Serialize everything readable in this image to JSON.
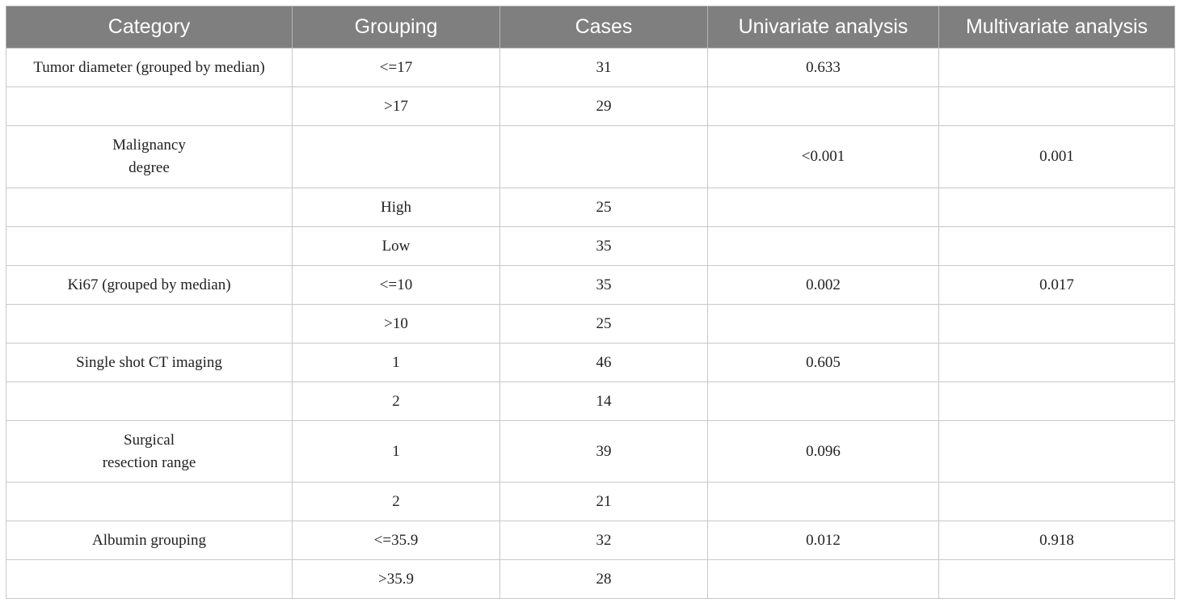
{
  "table": {
    "headers": [
      "Category",
      "Grouping",
      "Cases",
      "Univariate analysis",
      "Multivariate analysis"
    ],
    "rows": [
      {
        "category": "Tumor diameter (grouped by median)",
        "grouping": "<=17",
        "cases": "31",
        "univariate": "0.633",
        "multivariate": ""
      },
      {
        "category": "",
        "grouping": ">17",
        "cases": "29",
        "univariate": "",
        "multivariate": ""
      },
      {
        "category_line1": "Malignancy",
        "category_line2": "degree",
        "grouping": "",
        "cases": "",
        "univariate": "<0.001",
        "multivariate": "0.001"
      },
      {
        "category": "",
        "grouping": "High",
        "cases": "25",
        "univariate": "",
        "multivariate": ""
      },
      {
        "category": "",
        "grouping": "Low",
        "cases": "35",
        "univariate": "",
        "multivariate": ""
      },
      {
        "category": "Ki67 (grouped by median)",
        "grouping": "<=10",
        "cases": "35",
        "univariate": "0.002",
        "multivariate": "0.017"
      },
      {
        "category": "",
        "grouping": ">10",
        "cases": "25",
        "univariate": "",
        "multivariate": ""
      },
      {
        "category": "Single shot CT imaging",
        "grouping": "1",
        "cases": "46",
        "univariate": "0.605",
        "multivariate": ""
      },
      {
        "category": "",
        "grouping": "2",
        "cases": "14",
        "univariate": "",
        "multivariate": ""
      },
      {
        "category_line1": "Surgical",
        "category_line2": "resection range",
        "grouping": "1",
        "cases": "39",
        "univariate": "0.096",
        "multivariate": ""
      },
      {
        "category": "",
        "grouping": "2",
        "cases": "21",
        "univariate": "",
        "multivariate": ""
      },
      {
        "category": "Albumin grouping",
        "grouping": "<=35.9",
        "cases": "32",
        "univariate": "0.012",
        "multivariate": "0.918"
      },
      {
        "category": "",
        "grouping": ">35.9",
        "cases": "28",
        "univariate": "",
        "multivariate": ""
      }
    ]
  }
}
